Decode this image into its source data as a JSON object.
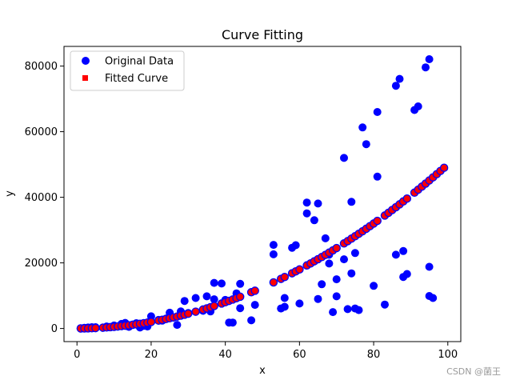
{
  "chart_data": {
    "type": "scatter",
    "title": "Curve Fitting",
    "xlabel": "x",
    "ylabel": "y",
    "xlim": [
      -3.5,
      103.5
    ],
    "ylim": [
      -4000,
      86000
    ],
    "xticks": [
      0,
      20,
      40,
      60,
      80,
      100
    ],
    "xtick_labels": [
      "0",
      "20",
      "40",
      "60",
      "80",
      "100"
    ],
    "yticks": [
      0,
      20000,
      40000,
      60000,
      80000
    ],
    "ytick_labels": [
      "0",
      "20000",
      "40000",
      "60000",
      "80000"
    ],
    "grid": false,
    "legend_position": "upper-left",
    "series": [
      {
        "name": "Original Data",
        "marker": "circle",
        "color": "#0000ff",
        "points": [
          [
            1,
            100
          ],
          [
            2,
            200
          ],
          [
            3,
            300
          ],
          [
            4,
            400
          ],
          [
            5,
            400
          ],
          [
            7,
            300
          ],
          [
            8,
            600
          ],
          [
            9,
            400
          ],
          [
            10,
            900
          ],
          [
            11,
            600
          ],
          [
            12,
            1400
          ],
          [
            13,
            1700
          ],
          [
            14,
            500
          ],
          [
            15,
            1200
          ],
          [
            16,
            1600
          ],
          [
            17,
            300
          ],
          [
            18,
            800
          ],
          [
            19,
            600
          ],
          [
            20,
            3700
          ],
          [
            22,
            2600
          ],
          [
            23,
            2400
          ],
          [
            24,
            3000
          ],
          [
            25,
            4800
          ],
          [
            26,
            3300
          ],
          [
            27,
            1100
          ],
          [
            28,
            5200
          ],
          [
            29,
            8400
          ],
          [
            30,
            4700
          ],
          [
            32,
            9300
          ],
          [
            34,
            5400
          ],
          [
            35,
            9800
          ],
          [
            36,
            5200
          ],
          [
            37,
            8900
          ],
          [
            37,
            13900
          ],
          [
            39,
            13700
          ],
          [
            40,
            8700
          ],
          [
            41,
            1800
          ],
          [
            42,
            1800
          ],
          [
            43,
            10700
          ],
          [
            44,
            6200
          ],
          [
            44,
            13600
          ],
          [
            47,
            2500
          ],
          [
            48,
            7200
          ],
          [
            53,
            25500
          ],
          [
            53,
            22600
          ],
          [
            55,
            6100
          ],
          [
            56,
            6600
          ],
          [
            56,
            9300
          ],
          [
            58,
            24600
          ],
          [
            59,
            25400
          ],
          [
            60,
            7600
          ],
          [
            62,
            38400
          ],
          [
            62,
            35100
          ],
          [
            63,
            19800
          ],
          [
            64,
            33000
          ],
          [
            65,
            38100
          ],
          [
            65,
            9000
          ],
          [
            66,
            13500
          ],
          [
            67,
            27500
          ],
          [
            68,
            22500
          ],
          [
            68,
            19800
          ],
          [
            69,
            5000
          ],
          [
            70,
            15000
          ],
          [
            70,
            9800
          ],
          [
            72,
            52000
          ],
          [
            72,
            21100
          ],
          [
            73,
            5900
          ],
          [
            74,
            38600
          ],
          [
            74,
            16800
          ],
          [
            75,
            23000
          ],
          [
            75,
            6100
          ],
          [
            76,
            5600
          ],
          [
            77,
            61300
          ],
          [
            78,
            56200
          ],
          [
            80,
            13000
          ],
          [
            81,
            66000
          ],
          [
            81,
            46300
          ],
          [
            83,
            7300
          ],
          [
            86,
            22500
          ],
          [
            86,
            74000
          ],
          [
            87,
            76100
          ],
          [
            88,
            23600
          ],
          [
            88,
            15700
          ],
          [
            89,
            16600
          ],
          [
            91,
            66600
          ],
          [
            92,
            67700
          ],
          [
            94,
            79600
          ],
          [
            95,
            82100
          ],
          [
            95,
            18800
          ],
          [
            95,
            9900
          ],
          [
            96,
            9300
          ]
        ]
      },
      {
        "name": "Fitted Curve",
        "marker": "square",
        "color": "#ff0000",
        "edge_color": "#0000ff",
        "x": [
          1,
          2,
          3,
          4,
          5,
          7,
          8,
          9,
          10,
          11,
          12,
          13,
          14,
          15,
          16,
          17,
          18,
          19,
          20,
          22,
          23,
          24,
          25,
          26,
          27,
          28,
          29,
          30,
          32,
          34,
          35,
          36,
          37,
          39,
          40,
          41,
          42,
          43,
          44,
          47,
          48,
          53,
          55,
          56,
          58,
          59,
          60,
          62,
          63,
          64,
          65,
          66,
          67,
          68,
          69,
          70,
          72,
          73,
          74,
          75,
          76,
          77,
          78,
          79,
          80,
          81,
          83,
          84,
          85,
          86,
          87,
          88,
          89,
          91,
          92,
          93,
          94,
          95,
          96,
          97,
          98,
          99
        ],
        "coef": 5.0,
        "exponent": 2.0
      }
    ]
  },
  "legend": {
    "entries": [
      {
        "label": "Original Data",
        "marker": "circle",
        "color": "#0000ff"
      },
      {
        "label": "Fitted Curve",
        "marker": "square",
        "color": "#ff0000"
      }
    ]
  },
  "watermark": "CSDN @菌王"
}
